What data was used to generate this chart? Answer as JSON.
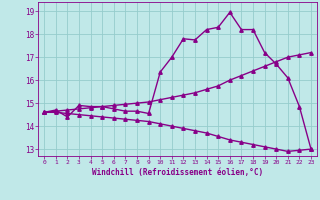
{
  "xlabel": "Windchill (Refroidissement éolien,°C)",
  "background_color": "#c0e8e8",
  "line_color": "#880088",
  "grid_color": "#96cccc",
  "xlim": [
    -0.5,
    23.5
  ],
  "ylim": [
    12.7,
    19.4
  ],
  "xticks": [
    0,
    1,
    2,
    3,
    4,
    5,
    6,
    7,
    8,
    9,
    10,
    11,
    12,
    13,
    14,
    15,
    16,
    17,
    18,
    19,
    20,
    21,
    22,
    23
  ],
  "yticks": [
    13,
    14,
    15,
    16,
    17,
    18,
    19
  ],
  "curve1_x": [
    0,
    1,
    2,
    3,
    4,
    5,
    6,
    7,
    8,
    9,
    10,
    11,
    12,
    13,
    14,
    15,
    16,
    17,
    18,
    19,
    20,
    21,
    22,
    23
  ],
  "curve1_y": [
    14.6,
    14.7,
    14.4,
    14.9,
    14.85,
    14.85,
    14.75,
    14.65,
    14.65,
    14.55,
    16.35,
    17.0,
    17.8,
    17.75,
    18.2,
    18.3,
    18.95,
    18.2,
    18.2,
    17.2,
    16.7,
    16.1,
    14.85,
    13.0
  ],
  "curve2_x": [
    0,
    1,
    2,
    3,
    4,
    5,
    6,
    7,
    8,
    9,
    10,
    11,
    12,
    13,
    14,
    15,
    16,
    17,
    18,
    19,
    20,
    21,
    22,
    23
  ],
  "curve2_y": [
    14.6,
    14.65,
    14.7,
    14.75,
    14.8,
    14.85,
    14.9,
    14.95,
    15.0,
    15.05,
    15.15,
    15.25,
    15.35,
    15.45,
    15.6,
    15.75,
    16.0,
    16.2,
    16.4,
    16.6,
    16.8,
    17.0,
    17.1,
    17.2
  ],
  "curve3_x": [
    0,
    1,
    2,
    3,
    4,
    5,
    6,
    7,
    8,
    9,
    10,
    11,
    12,
    13,
    14,
    15,
    16,
    17,
    18,
    19,
    20,
    21,
    22,
    23
  ],
  "curve3_y": [
    14.6,
    14.6,
    14.55,
    14.5,
    14.45,
    14.4,
    14.35,
    14.3,
    14.25,
    14.2,
    14.1,
    14.0,
    13.9,
    13.8,
    13.7,
    13.55,
    13.4,
    13.3,
    13.2,
    13.1,
    13.0,
    12.9,
    12.95,
    13.0
  ],
  "marker": "^",
  "markersize": 2.5,
  "linewidth": 1.0
}
